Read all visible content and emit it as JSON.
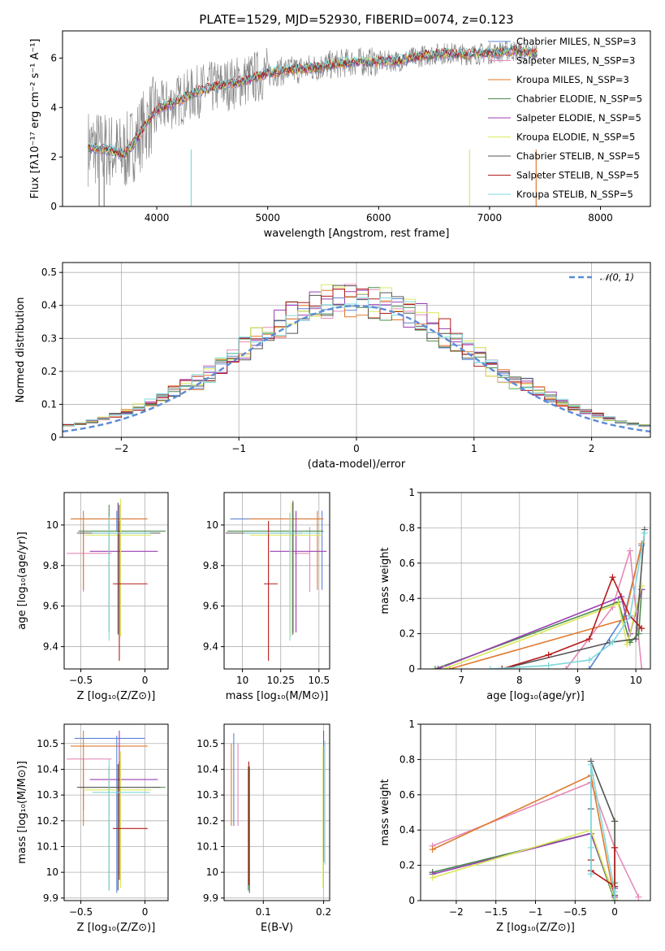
{
  "colors": {
    "chabrier_miles": "#5b84d6",
    "salpeter_miles": "#e58ab8",
    "kroupa_miles": "#e07a2e",
    "chabrier_elodie": "#4e8c4e",
    "salpeter_elodie": "#9b3fb5",
    "kroupa_elodie": "#dbe85c",
    "chabrier_stelib": "#555555",
    "salpeter_stelib": "#b31b1b",
    "kroupa_stelib": "#7fd8dc",
    "data": "#808080",
    "normal_curve": "#5b8bd6"
  },
  "chart_data": [
    {
      "id": "spectrum",
      "type": "line",
      "title": "PLATE=1529, MJD=52930, FIBERID=0074, z=0.123",
      "xlabel": "wavelength [Angstrom, rest frame]",
      "ylabel": "Flux [fλ10⁻¹⁷ erg cm⁻² s⁻¹ A⁻¹]",
      "xlim": [
        3150,
        8450
      ],
      "ylim": [
        0,
        7.1
      ],
      "xticks": [
        4000,
        5000,
        6000,
        7000,
        8000
      ],
      "yticks": [
        0,
        2,
        4,
        6
      ],
      "grid": false,
      "legend_position": "top-right",
      "legend": [
        "Chabrier MILES, N_SSP=3",
        "Salpeter MILES, N_SSP=3",
        "Kroupa MILES, N_SSP=3",
        "Chabrier ELODIE, N_SSP=5",
        "Salpeter ELODIE, N_SSP=5",
        "Kroupa ELODIE, N_SSP=5",
        "Chabrier STELIB, N_SSP=5",
        "Salpeter STELIB, N_SSP=5",
        "Kroupa STELIB, N_SSP=5"
      ],
      "model_continuum": {
        "x": [
          3400,
          3600,
          3700,
          3800,
          3900,
          4000,
          4200,
          4400,
          4600,
          4800,
          5000,
          5200,
          5400,
          5600,
          5800,
          6000,
          6200,
          6400,
          6600,
          6800,
          7000,
          7200,
          7400
        ],
        "y": [
          2.4,
          2.25,
          2.1,
          2.6,
          3.3,
          3.9,
          4.3,
          4.7,
          4.9,
          5.1,
          5.4,
          5.5,
          5.6,
          5.75,
          5.85,
          5.85,
          5.9,
          6.1,
          6.2,
          6.15,
          6.2,
          6.3,
          6.2
        ]
      }
    },
    {
      "id": "residuals",
      "type": "line",
      "xlabel": "(data-model)/error",
      "ylabel": "Normed distribution",
      "xlim": [
        -2.5,
        2.5
      ],
      "ylim": [
        0,
        0.53
      ],
      "xticks": [
        -2,
        -1,
        0,
        1,
        2
      ],
      "yticks": [
        0.0,
        0.1,
        0.2,
        0.3,
        0.4,
        0.5
      ],
      "grid": true,
      "legend_position": "top-right",
      "legend": [
        "𝒩(0, 1)"
      ]
    },
    {
      "id": "age_vs_Z",
      "type": "scatter",
      "xlabel": "Z [log₁₀(Z/Z⊙)]",
      "ylabel": "age  [log₁₀(age/yr)]",
      "xlim": [
        -0.63,
        0.18
      ],
      "ylim": [
        9.29,
        10.16
      ],
      "xticks": [
        -0.5,
        0.0
      ],
      "yticks": [
        9.4,
        9.6,
        9.8,
        10.0
      ],
      "grid": true,
      "points": [
        {
          "x": -0.22,
          "y": 10.03,
          "xerr": [
            0.33,
            0.22
          ],
          "yerr": [
            0.06,
            0.04
          ]
        },
        {
          "x": -0.48,
          "y": 9.86,
          "xerr": [
            0.13,
            0.22
          ],
          "yerr": [
            0.19,
            0.13
          ]
        },
        {
          "x": -0.48,
          "y": 10.03,
          "xerr": [
            0.1,
            0.5
          ],
          "yerr": [
            0.35,
            0.04
          ]
        },
        {
          "x": -0.28,
          "y": 9.97,
          "xerr": [
            0.24,
            0.44
          ],
          "yerr": [
            0.5,
            0.13
          ]
        },
        {
          "x": -0.2,
          "y": 9.87,
          "xerr": [
            0.23,
            0.3
          ],
          "yerr": [
            0.4,
            0.23
          ]
        },
        {
          "x": -0.19,
          "y": 9.95,
          "xerr": [
            0.28,
            0.24
          ],
          "yerr": [
            0.5,
            0.18
          ]
        },
        {
          "x": -0.21,
          "y": 9.96,
          "xerr": [
            0.32,
            0.33
          ],
          "yerr": [
            0.5,
            0.15
          ]
        },
        {
          "x": -0.2,
          "y": 9.71,
          "xerr": [
            0.05,
            0.22
          ],
          "yerr": [
            0.38,
            0.31
          ]
        },
        {
          "x": -0.28,
          "y": 9.96,
          "xerr": [
            0.13,
            0.32
          ],
          "yerr": [
            0.53,
            0.08
          ]
        }
      ]
    },
    {
      "id": "age_vs_mass",
      "type": "scatter",
      "xlabel": "mass [log₁₀(M/M⊙)]",
      "xlim": [
        9.88,
        10.57
      ],
      "ylim": [
        9.29,
        10.16
      ],
      "xticks": [
        10.0,
        10.25,
        10.5
      ],
      "yticks": [
        9.4,
        9.6,
        9.8,
        10.0
      ],
      "grid": true,
      "points": [
        {
          "x": 10.52,
          "y": 10.03,
          "xerr": [
            0.6,
            0.0
          ],
          "yerr": [
            0.35,
            0.04
          ]
        },
        {
          "x": 10.44,
          "y": 9.86,
          "xerr": [
            0.1,
            0.0
          ],
          "yerr": [
            0.19,
            0.13
          ]
        },
        {
          "x": 10.49,
          "y": 10.03,
          "xerr": [
            0.45,
            0.04
          ],
          "yerr": [
            0.35,
            0.04
          ]
        },
        {
          "x": 10.33,
          "y": 9.97,
          "xerr": [
            0.43,
            0.2
          ],
          "yerr": [
            0.5,
            0.15
          ]
        },
        {
          "x": 10.35,
          "y": 9.87,
          "xerr": [
            0.17,
            0.2
          ],
          "yerr": [
            0.4,
            0.2
          ]
        },
        {
          "x": 10.32,
          "y": 9.95,
          "xerr": [
            0.27,
            0.2
          ],
          "yerr": [
            0.5,
            0.16
          ]
        },
        {
          "x": 10.33,
          "y": 9.96,
          "xerr": [
            0.44,
            0.06
          ],
          "yerr": [
            0.5,
            0.15
          ]
        },
        {
          "x": 10.17,
          "y": 9.71,
          "xerr": [
            0.03,
            0.06
          ],
          "yerr": [
            0.38,
            0.31
          ]
        },
        {
          "x": 10.31,
          "y": 9.96,
          "xerr": [
            0.3,
            0.2
          ],
          "yerr": [
            0.53,
            0.1
          ]
        }
      ]
    },
    {
      "id": "weight_vs_age",
      "type": "line",
      "xlabel": "age  [log₁₀(age/yr)]",
      "ylabel": "mass weight",
      "xlim": [
        6.3,
        10.25
      ],
      "ylim": [
        0,
        1.0
      ],
      "xticks": [
        7,
        8,
        9,
        10
      ],
      "yticks": [
        0.0,
        0.2,
        0.4,
        0.6,
        0.8,
        1.0
      ],
      "grid": true,
      "series": [
        {
          "x": [
            9.2,
            9.8,
            10.1
          ],
          "y": [
            0.0,
            0.3,
            0.7
          ]
        },
        {
          "x": [
            8.8,
            9.6,
            9.9,
            10.1
          ],
          "y": [
            0.0,
            0.35,
            0.67,
            0.0
          ]
        },
        {
          "x": [
            6.8,
            9.8,
            10.1
          ],
          "y": [
            0.0,
            0.28,
            0.71
          ]
        },
        {
          "x": [
            6.55,
            9.7,
            9.9,
            10.05,
            10.1
          ],
          "y": [
            0.0,
            0.38,
            0.15,
            0.2,
            0.45
          ]
        },
        {
          "x": [
            6.6,
            9.75,
            9.9,
            10.1
          ],
          "y": [
            0.0,
            0.41,
            0.2,
            0.45
          ]
        },
        {
          "x": [
            6.7,
            9.7,
            9.85,
            10.1
          ],
          "y": [
            0.0,
            0.37,
            0.14,
            0.47
          ]
        },
        {
          "x": [
            7.7,
            9.55,
            10.0,
            10.15
          ],
          "y": [
            0.0,
            0.15,
            0.17,
            0.79
          ]
        },
        {
          "x": [
            7.7,
            8.5,
            9.2,
            9.6,
            9.9,
            10.1
          ],
          "y": [
            0.0,
            0.08,
            0.17,
            0.52,
            0.3,
            0.23
          ]
        },
        {
          "x": [
            7.5,
            8.5,
            9.2,
            9.6,
            9.9,
            10.15
          ],
          "y": [
            0.0,
            0.02,
            0.05,
            0.15,
            0.3,
            0.77
          ]
        }
      ]
    },
    {
      "id": "mass_vs_Z",
      "type": "scatter",
      "xlabel": "Z [log₁₀(Z/Z⊙)]",
      "ylabel": "mass [log₁₀(M/M⊙)]",
      "xlim": [
        -0.63,
        0.18
      ],
      "ylim": [
        9.89,
        10.575
      ],
      "xticks": [
        -0.5,
        0.0
      ],
      "yticks": [
        9.9,
        10.0,
        10.1,
        10.2,
        10.3,
        10.4,
        10.5
      ],
      "grid": true,
      "points": [
        {
          "x": -0.22,
          "y": 10.52,
          "xerr": [
            0.33,
            0.22
          ],
          "yerr": [
            0.6,
            0.01
          ]
        },
        {
          "x": -0.48,
          "y": 10.44,
          "xerr": [
            0.13,
            0.22
          ],
          "yerr": [
            0.2,
            0.0
          ]
        },
        {
          "x": -0.48,
          "y": 10.49,
          "xerr": [
            0.1,
            0.5
          ],
          "yerr": [
            0.31,
            0.06
          ]
        },
        {
          "x": -0.28,
          "y": 10.33,
          "xerr": [
            0.24,
            0.44
          ],
          "yerr": [
            0.4,
            0.08
          ]
        },
        {
          "x": -0.2,
          "y": 10.36,
          "xerr": [
            0.23,
            0.3
          ],
          "yerr": [
            0.37,
            0.19
          ]
        },
        {
          "x": -0.19,
          "y": 10.32,
          "xerr": [
            0.28,
            0.24
          ],
          "yerr": [
            0.38,
            0.15
          ]
        },
        {
          "x": -0.21,
          "y": 10.33,
          "xerr": [
            0.32,
            0.33
          ],
          "yerr": [
            0.4,
            0.09
          ]
        },
        {
          "x": -0.2,
          "y": 10.17,
          "xerr": [
            0.05,
            0.22
          ],
          "yerr": [
            0.2,
            0.26
          ]
        },
        {
          "x": -0.28,
          "y": 10.31,
          "xerr": [
            0.13,
            0.32
          ],
          "yerr": [
            0.38,
            0.13
          ]
        }
      ]
    },
    {
      "id": "mass_vs_EBV",
      "type": "scatter",
      "xlabel": "E(B-V)",
      "xlim": [
        0.035,
        0.21
      ],
      "ylim": [
        9.89,
        10.575
      ],
      "xticks": [
        0.1,
        0.2
      ],
      "yticks": [
        9.9,
        10.0,
        10.1,
        10.2,
        10.3,
        10.4,
        10.5
      ],
      "grid": true,
      "points": [
        {
          "x": 0.051,
          "y": 10.35,
          "yerr": [
            0.17,
            0.19
          ]
        },
        {
          "x": 0.058,
          "y": 10.34,
          "yerr": [
            0.16,
            0.16
          ]
        },
        {
          "x": 0.047,
          "y": 10.33,
          "yerr": [
            0.15,
            0.17
          ]
        },
        {
          "x": 0.075,
          "y": 10.2,
          "yerr": [
            0.27,
            0.21
          ]
        },
        {
          "x": 0.2,
          "y": 10.3,
          "yerr": [
            0.26,
            0.25
          ]
        },
        {
          "x": 0.199,
          "y": 10.25,
          "yerr": [
            0.31,
            0.24
          ]
        },
        {
          "x": 0.077,
          "y": 10.18,
          "yerr": [
            0.26,
            0.23
          ]
        },
        {
          "x": 0.076,
          "y": 10.24,
          "yerr": [
            0.29,
            0.19
          ]
        },
        {
          "x": 0.202,
          "y": 10.26,
          "yerr": [
            0.23,
            0.25
          ]
        }
      ]
    },
    {
      "id": "weight_vs_Z",
      "type": "line",
      "xlabel": "Z [log₁₀(Z/Z⊙)]",
      "ylabel": "mass weight",
      "xlim": [
        -2.45,
        0.45
      ],
      "ylim": [
        0,
        1.0
      ],
      "xticks": [
        -2.0,
        -1.5,
        -1.0,
        -0.5,
        0.0
      ],
      "yticks": [
        0.0,
        0.2,
        0.4,
        0.6,
        0.8,
        1.0
      ],
      "grid": true,
      "series": [
        {
          "x": [
            -2.3,
            -0.3,
            0.0,
            0.0
          ],
          "y": [
            0.16,
            0.38,
            0.0,
            0.07
          ]
        },
        {
          "x": [
            -2.3,
            -0.3,
            0.0,
            0.3
          ],
          "y": [
            0.31,
            0.67,
            0.3,
            0.02
          ]
        },
        {
          "x": [
            -2.3,
            -0.3,
            0.0,
            0.0
          ],
          "y": [
            0.29,
            0.71,
            0.0,
            0.1
          ]
        },
        {
          "x": [
            -2.3,
            -0.3,
            0.0,
            0.0
          ],
          "y": [
            0.16,
            0.38,
            0.0,
            0.1
          ]
        },
        {
          "x": [
            -2.3,
            -0.3,
            0.0,
            0.0
          ],
          "y": [
            0.15,
            0.38,
            0.02,
            0.07
          ]
        },
        {
          "x": [
            -2.3,
            -0.3,
            0.0,
            0.0
          ],
          "y": [
            0.13,
            0.4,
            0.01,
            0.45
          ]
        },
        {
          "x": [
            -0.3,
            -0.3,
            -0.3,
            0.0,
            0.0
          ],
          "y": [
            0.15,
            0.52,
            0.79,
            0.45,
            0.03
          ]
        },
        {
          "x": [
            -0.3,
            -0.3,
            0.0,
            0.0
          ],
          "y": [
            0.23,
            0.17,
            0.08,
            0.3
          ]
        },
        {
          "x": [
            -0.3,
            -0.3,
            -0.3,
            0.0,
            0.0
          ],
          "y": [
            0.15,
            0.3,
            0.77,
            0.05,
            0.0
          ]
        }
      ]
    }
  ]
}
